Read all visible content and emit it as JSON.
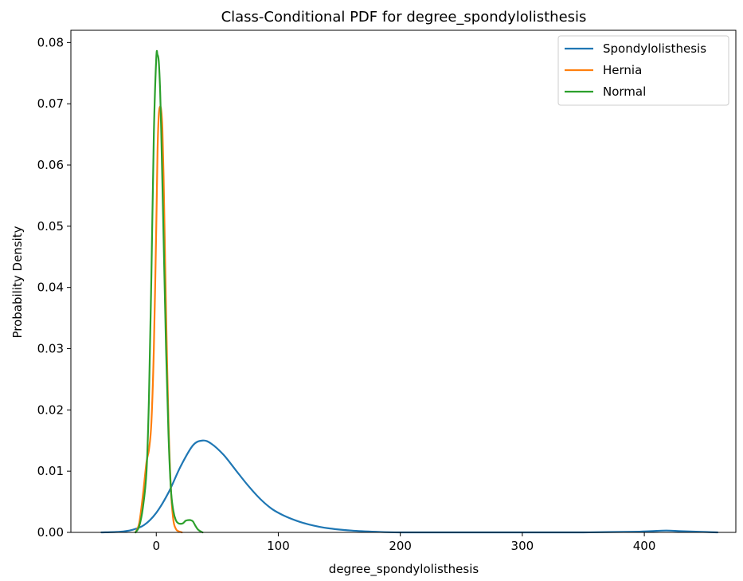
{
  "chart_data": {
    "type": "line",
    "title": "Class-Conditional PDF for degree_spondylolisthesis",
    "xlabel": "degree_spondylolisthesis",
    "ylabel": "Probability Density",
    "xlim": [
      -70,
      475
    ],
    "ylim": [
      0,
      0.082
    ],
    "xticks": [
      0,
      100,
      200,
      300,
      400
    ],
    "xtick_labels": [
      "0",
      "100",
      "200",
      "300",
      "400"
    ],
    "yticks": [
      0.0,
      0.01,
      0.02,
      0.03,
      0.04,
      0.05,
      0.06,
      0.07,
      0.08
    ],
    "ytick_labels": [
      "0.00",
      "0.01",
      "0.02",
      "0.03",
      "0.04",
      "0.05",
      "0.06",
      "0.07",
      "0.08"
    ],
    "grid": false,
    "legend_position": "top-right",
    "series": [
      {
        "name": "Spondylolisthesis",
        "color": "#1f77b4",
        "x": [
          -45,
          -30,
          -20,
          -10,
          0,
          10,
          20,
          30,
          38,
          45,
          55,
          65,
          75,
          85,
          95,
          105,
          115,
          125,
          140,
          160,
          180,
          200,
          250,
          300,
          350,
          390,
          405,
          418,
          430,
          445,
          460
        ],
        "y": [
          0.0,
          0.0001,
          0.0004,
          0.0012,
          0.0032,
          0.0065,
          0.0108,
          0.0142,
          0.015,
          0.0145,
          0.0127,
          0.0102,
          0.0077,
          0.0055,
          0.0038,
          0.0027,
          0.0019,
          0.0013,
          0.0007,
          0.0003,
          0.0001,
          0.0,
          0.0,
          0.0,
          0.0,
          0.0001,
          0.0002,
          0.0003,
          0.0002,
          0.0001,
          0.0
        ]
      },
      {
        "name": "Hernia",
        "color": "#ff7f0e",
        "x": [
          -17,
          -14,
          -11,
          -8,
          -6,
          -4,
          -2,
          0,
          1,
          2,
          3,
          4,
          5,
          6,
          7,
          8,
          10,
          12,
          14,
          16,
          18,
          21
        ],
        "y": [
          0.0,
          0.0015,
          0.006,
          0.0115,
          0.0135,
          0.018,
          0.03,
          0.05,
          0.062,
          0.068,
          0.0695,
          0.069,
          0.066,
          0.058,
          0.047,
          0.036,
          0.018,
          0.007,
          0.002,
          0.0006,
          0.0002,
          0.0
        ]
      },
      {
        "name": "Normal",
        "color": "#2ca02c",
        "x": [
          -17,
          -14,
          -11,
          -8,
          -6,
          -4,
          -2,
          0,
          1,
          2,
          3,
          4,
          6,
          8,
          10,
          12,
          14,
          16,
          18,
          20,
          22,
          24,
          26,
          28,
          30,
          32,
          34,
          36,
          38
        ],
        "y": [
          0.0,
          0.001,
          0.004,
          0.01,
          0.022,
          0.042,
          0.065,
          0.0775,
          0.078,
          0.077,
          0.073,
          0.066,
          0.048,
          0.03,
          0.016,
          0.007,
          0.0035,
          0.002,
          0.0015,
          0.0014,
          0.0015,
          0.0019,
          0.002,
          0.002,
          0.0018,
          0.0011,
          0.0005,
          0.0002,
          0.0
        ]
      }
    ]
  }
}
